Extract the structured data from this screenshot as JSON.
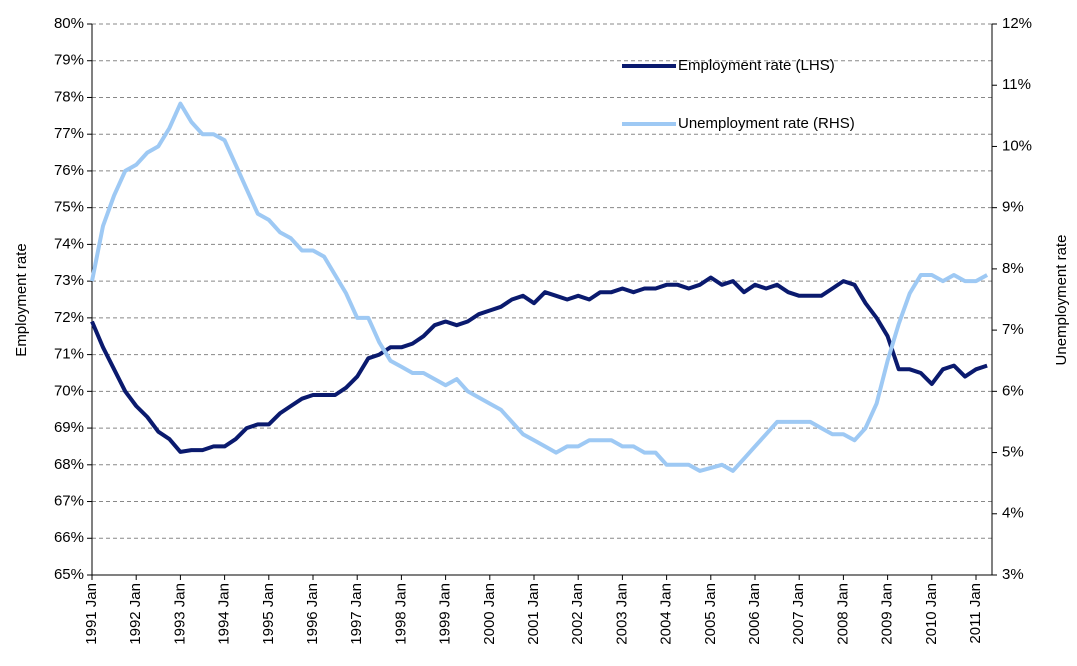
{
  "chart_data": {
    "type": "line",
    "y_label": "Employment rate",
    "y2_label": "Unemployment rate",
    "categories": [
      "1991 Jan",
      null,
      null,
      null,
      "1992 Jan",
      null,
      null,
      null,
      "1993 Jan",
      null,
      null,
      null,
      "1994 Jan",
      null,
      null,
      null,
      "1995 Jan",
      null,
      null,
      null,
      "1996 Jan",
      null,
      null,
      null,
      "1997 Jan",
      null,
      null,
      null,
      "1998 Jan",
      null,
      null,
      null,
      "1999 Jan",
      null,
      null,
      null,
      "2000 Jan",
      null,
      null,
      null,
      "2001 Jan",
      null,
      null,
      null,
      "2002 Jan",
      null,
      null,
      null,
      "2003 Jan",
      null,
      null,
      null,
      "2004 Jan",
      null,
      null,
      null,
      "2005 Jan",
      null,
      null,
      null,
      "2006 Jan",
      null,
      null,
      null,
      "2007 Jan",
      null,
      null,
      null,
      "2008 Jan",
      null,
      null,
      null,
      "2009 Jan",
      null,
      null,
      null,
      "2010 Jan",
      null,
      null,
      null,
      "2011 Jan",
      null
    ],
    "series": [
      {
        "name": "Employment rate (LHS)",
        "color": "#0a1a6e",
        "values": [
          71.9,
          71.2,
          70.6,
          70.0,
          69.6,
          69.3,
          68.9,
          68.7,
          68.35,
          68.4,
          68.4,
          68.5,
          68.5,
          68.7,
          69.0,
          69.1,
          69.1,
          69.4,
          69.6,
          69.8,
          69.9,
          69.9,
          69.9,
          70.1,
          70.4,
          70.9,
          71.0,
          71.2,
          71.2,
          71.3,
          71.5,
          71.8,
          71.9,
          71.8,
          71.9,
          72.1,
          72.2,
          72.3,
          72.5,
          72.6,
          72.4,
          72.7,
          72.6,
          72.5,
          72.6,
          72.5,
          72.7,
          72.7,
          72.8,
          72.7,
          72.8,
          72.8,
          72.9,
          72.9,
          72.8,
          72.9,
          73.1,
          72.9,
          73.0,
          72.7,
          72.9,
          72.8,
          72.9,
          72.7,
          72.6,
          72.6,
          72.6,
          72.8,
          73.0,
          72.9,
          72.4,
          72.0,
          71.5,
          70.6,
          70.6,
          70.5,
          70.2,
          70.6,
          70.7,
          70.4,
          70.6,
          70.7
        ]
      },
      {
        "name": "Unemployment rate (RHS)",
        "color": "#9ec9f4",
        "axis": "y2",
        "values": [
          7.8,
          8.7,
          9.2,
          9.6,
          9.7,
          9.9,
          10.0,
          10.3,
          10.7,
          10.4,
          10.2,
          10.2,
          10.1,
          9.7,
          9.3,
          8.9,
          8.8,
          8.6,
          8.5,
          8.3,
          8.3,
          8.2,
          7.9,
          7.6,
          7.2,
          7.2,
          6.8,
          6.5,
          6.4,
          6.3,
          6.3,
          6.2,
          6.1,
          6.2,
          6.0,
          5.9,
          5.8,
          5.7,
          5.5,
          5.3,
          5.2,
          5.1,
          5.0,
          5.1,
          5.1,
          5.2,
          5.2,
          5.2,
          5.1,
          5.1,
          5.0,
          5.0,
          4.8,
          4.8,
          4.8,
          4.7,
          4.75,
          4.8,
          4.7,
          4.9,
          5.1,
          5.3,
          5.5,
          5.5,
          5.5,
          5.5,
          5.4,
          5.3,
          5.3,
          5.2,
          5.4,
          5.8,
          6.5,
          7.1,
          7.6,
          7.9,
          7.9,
          7.8,
          7.9,
          7.8,
          7.8,
          7.9
        ]
      }
    ],
    "ylim": [
      65,
      80
    ],
    "yticks": [
      {
        "value": 65,
        "label": "65%"
      },
      {
        "value": 66,
        "label": "66%"
      },
      {
        "value": 67,
        "label": "67%"
      },
      {
        "value": 68,
        "label": "68%"
      },
      {
        "value": 69,
        "label": "69%"
      },
      {
        "value": 70,
        "label": "70%"
      },
      {
        "value": 71,
        "label": "71%"
      },
      {
        "value": 72,
        "label": "72%"
      },
      {
        "value": 73,
        "label": "73%"
      },
      {
        "value": 74,
        "label": "74%"
      },
      {
        "value": 75,
        "label": "75%"
      },
      {
        "value": 76,
        "label": "76%"
      },
      {
        "value": 77,
        "label": "77%"
      },
      {
        "value": 78,
        "label": "78%"
      },
      {
        "value": 79,
        "label": "79%"
      },
      {
        "value": 80,
        "label": "80%"
      }
    ],
    "y2lim": [
      3,
      12
    ],
    "y2ticks": [
      {
        "value": 3,
        "label": "3%"
      },
      {
        "value": 4,
        "label": "4%"
      },
      {
        "value": 5,
        "label": "5%"
      },
      {
        "value": 6,
        "label": "6%"
      },
      {
        "value": 7,
        "label": "7%"
      },
      {
        "value": 8,
        "label": "8%"
      },
      {
        "value": 9,
        "label": "9%"
      },
      {
        "value": 10,
        "label": "10%"
      },
      {
        "value": 11,
        "label": "11%"
      },
      {
        "value": 12,
        "label": "12%"
      }
    ],
    "grid": true,
    "legend": "upper right"
  }
}
